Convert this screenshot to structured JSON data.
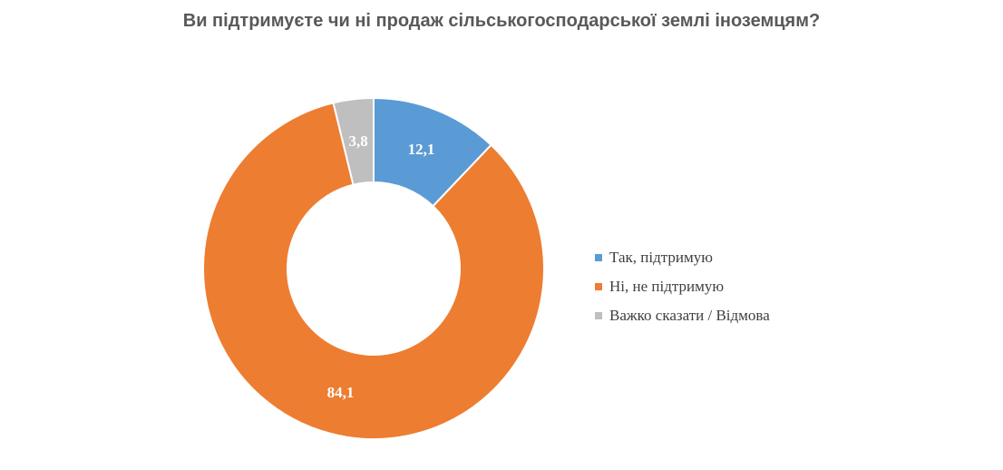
{
  "chart_data": {
    "type": "pie",
    "variant": "donut",
    "title": "Ви підтримуєте чи ні продаж сільськогосподарської землі іноземцям?",
    "categories": [
      "Так, підтримую",
      "Ні, не підтримую",
      "Важко сказати / Відмова"
    ],
    "values": [
      12.1,
      84.1,
      3.8
    ],
    "value_labels": [
      "12,1",
      "84,1",
      "3,8"
    ],
    "colors": [
      "#5b9bd5",
      "#ed7d31",
      "#bfbfbf"
    ],
    "legend_position": "right"
  }
}
